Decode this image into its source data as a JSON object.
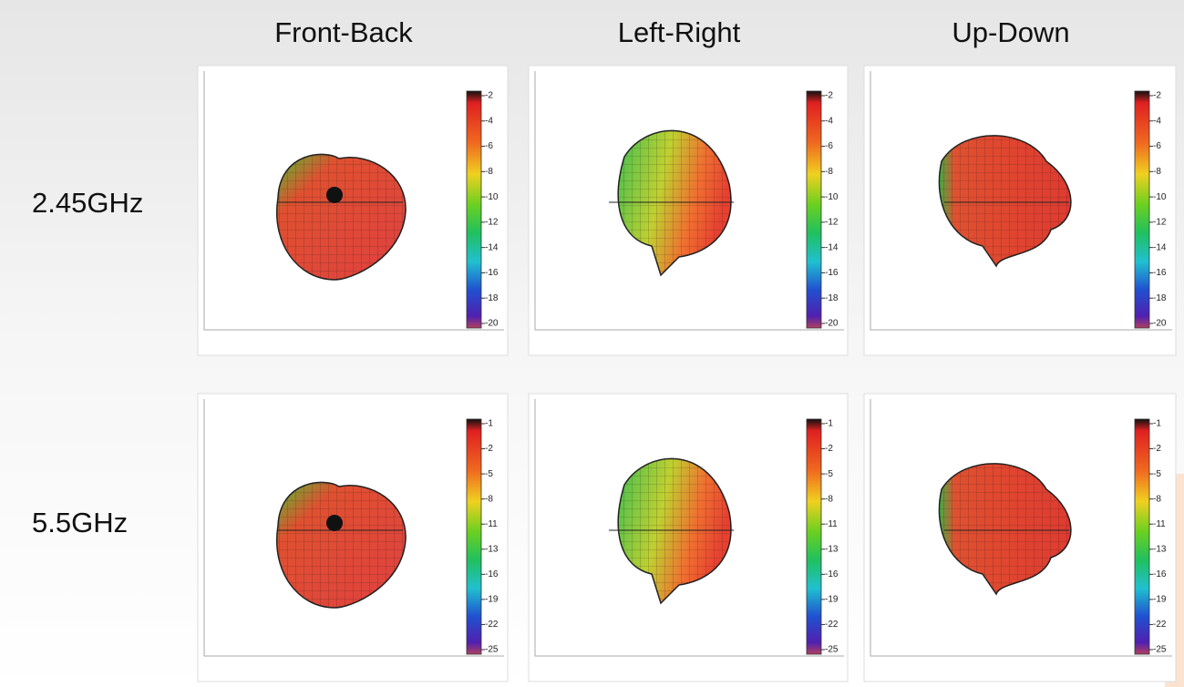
{
  "columns": [
    "Front-Back",
    "Left-Right",
    "Up-Down"
  ],
  "rows": [
    {
      "label": "2.45GHz",
      "colorbar": [
        -2,
        -4,
        -6,
        -8,
        -10,
        -12,
        -14,
        -16,
        -18,
        -20
      ]
    },
    {
      "label": "5.5GHz",
      "colorbar": [
        -1,
        -2,
        -5,
        -8,
        -11,
        -13,
        -16,
        -19,
        -22,
        -25
      ]
    }
  ]
}
